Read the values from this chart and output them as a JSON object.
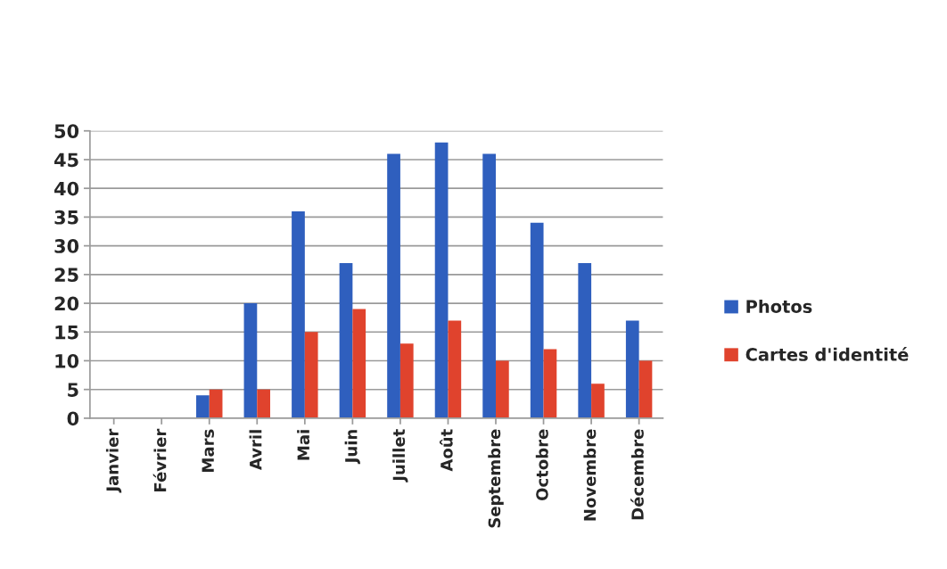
{
  "chart_data": {
    "type": "bar",
    "categories": [
      "Janvier",
      "Février",
      "Mars",
      "Avril",
      "Mai",
      "Juin",
      "Juillet",
      "Août",
      "Septembre",
      "Octobre",
      "Novembre",
      "Décembre"
    ],
    "series": [
      {
        "name": "Photos",
        "color": "#2f5fbe",
        "values": [
          0,
          0,
          4,
          20,
          36,
          27,
          46,
          48,
          46,
          34,
          27,
          17
        ]
      },
      {
        "name": "Cartes d'identité",
        "color": "#e0432d",
        "values": [
          0,
          0,
          5,
          5,
          15,
          19,
          13,
          17,
          10,
          12,
          6,
          10
        ]
      }
    ],
    "ylim": [
      0,
      50
    ],
    "yticks": [
      0,
      5,
      10,
      15,
      20,
      25,
      30,
      35,
      40,
      45,
      50
    ],
    "grid": "y",
    "legend": "right"
  }
}
